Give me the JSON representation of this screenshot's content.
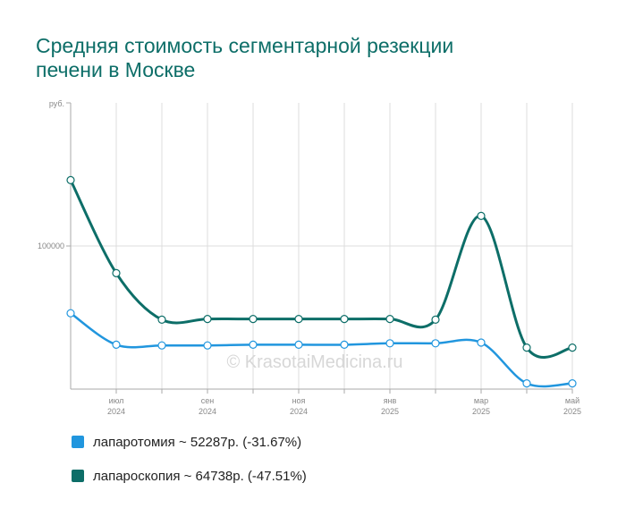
{
  "chart_data": {
    "type": "line",
    "title": "Средняя стоимость сегментарной резекции печени в Москве",
    "title_lines": [
      "Средняя стоимость сегментарной резекции",
      "печени в Москве"
    ],
    "y_unit_label": "руб.",
    "y_tick_labels": [
      "100000"
    ],
    "y_ticks": [
      100000
    ],
    "ylim": [
      0,
      200000
    ],
    "x": [
      "2024-06",
      "2024-07",
      "2024-08",
      "2024-09",
      "2024-10",
      "2024-11",
      "2024-12",
      "2025-01",
      "2025-02",
      "2025-03",
      "2025-04",
      "2025-05"
    ],
    "x_tick_labels": [
      {
        "month": "июл",
        "year": "2024",
        "index": 1
      },
      {
        "month": "сен",
        "year": "2024",
        "index": 3
      },
      {
        "month": "ноя",
        "year": "2024",
        "index": 5
      },
      {
        "month": "янв",
        "year": "2025",
        "index": 7
      },
      {
        "month": "мар",
        "year": "2025",
        "index": 9
      },
      {
        "month": "май",
        "year": "2025",
        "index": 11
      }
    ],
    "grid": true,
    "watermark": "© KrasotaiMedicina.ru",
    "series": [
      {
        "name": "лапаротомия",
        "color": "#2196de",
        "values": [
          53000,
          31000,
          30500,
          30500,
          31000,
          31000,
          31000,
          32000,
          32000,
          32500,
          4000,
          4000
        ]
      },
      {
        "name": "лапароскопия",
        "color": "#0d6e68",
        "values": [
          146000,
          81000,
          48500,
          49000,
          49000,
          49000,
          49000,
          49000,
          48500,
          121000,
          29000,
          29000
        ]
      }
    ],
    "legend": [
      {
        "text": "лапаротомия ~ 52287р. (-31.67%)",
        "color": "#2196de"
      },
      {
        "text": "лапароскопия ~ 64738р. (-47.51%)",
        "color": "#0d6e68"
      }
    ],
    "legend_position": "bottom"
  }
}
